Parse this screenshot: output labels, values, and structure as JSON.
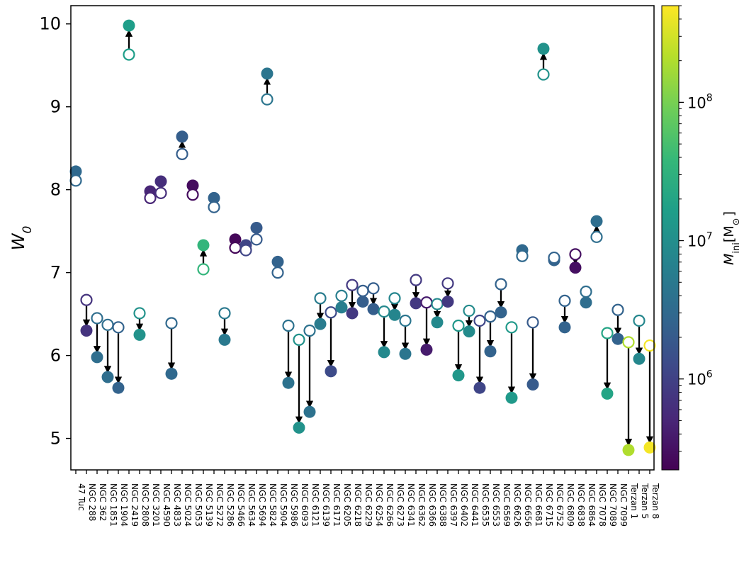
{
  "chart_data": {
    "type": "scatter",
    "ylabel": "W",
    "ylabel_sub": "0",
    "ylim": [
      4.62,
      10.22
    ],
    "yticks": [
      5,
      6,
      7,
      8,
      9,
      10
    ],
    "colorbar": {
      "label_main": "M",
      "label_sub": "ini",
      "label_rest": "[M",
      "label_rest_sub": "⊙",
      "label_close": "]",
      "scale": "log",
      "range": [
        220000,
        500000000
      ],
      "colormap": "viridis",
      "ticks": [
        {
          "base": "10",
          "exp": "6",
          "value": 1000000
        },
        {
          "base": "10",
          "exp": "7",
          "value": 10000000
        },
        {
          "base": "10",
          "exp": "8",
          "value": 100000000
        }
      ]
    },
    "legend_note": "open circle = initial W0, filled circle = final W0; arrows point from initial to final",
    "clusters": [
      {
        "name": "47 Tuc",
        "w0_init": 8.11,
        "w0_final": 8.22,
        "mass": 3000000
      },
      {
        "name": "NGC 288",
        "w0_init": 6.67,
        "w0_final": 6.3,
        "mass": 700000
      },
      {
        "name": "NGC 362",
        "w0_init": 6.45,
        "w0_final": 5.98,
        "mass": 3500000
      },
      {
        "name": "NGC 1851",
        "w0_init": 6.37,
        "w0_final": 5.74,
        "mass": 3500000
      },
      {
        "name": "NGC 1904",
        "w0_init": 6.34,
        "w0_final": 5.61,
        "mass": 2500000
      },
      {
        "name": "NGC 2419",
        "w0_init": 9.63,
        "w0_final": 9.98,
        "mass": 16000000
      },
      {
        "name": "NGC 2808",
        "w0_init": 6.51,
        "w0_final": 6.25,
        "mass": 11000000
      },
      {
        "name": "NGC 3201",
        "w0_init": 7.9,
        "w0_final": 7.98,
        "mass": 500000
      },
      {
        "name": "NGC 4590",
        "w0_init": 7.96,
        "w0_final": 8.1,
        "mass": 600000
      },
      {
        "name": "NGC 4833",
        "w0_init": 6.39,
        "w0_final": 5.78,
        "mass": 3000000
      },
      {
        "name": "NGC 5024",
        "w0_init": 8.43,
        "w0_final": 8.64,
        "mass": 2200000
      },
      {
        "name": "NGC 5053",
        "w0_init": 7.94,
        "w0_final": 8.05,
        "mass": 280000
      },
      {
        "name": "NGC 5139",
        "w0_init": 7.04,
        "w0_final": 7.33,
        "mass": 35000000
      },
      {
        "name": "NGC 5272",
        "w0_init": 7.79,
        "w0_final": 7.9,
        "mass": 2500000
      },
      {
        "name": "NGC 5286",
        "w0_init": 6.51,
        "w0_final": 6.19,
        "mass": 5000000
      },
      {
        "name": "NGC 5466",
        "w0_init": 7.3,
        "w0_final": 7.4,
        "mass": 250000
      },
      {
        "name": "NGC 5634",
        "w0_init": 7.27,
        "w0_final": 7.33,
        "mass": 1100000
      },
      {
        "name": "NGC 5694",
        "w0_init": 7.4,
        "w0_final": 7.54,
        "mass": 2000000
      },
      {
        "name": "NGC 5824",
        "w0_init": 9.09,
        "w0_final": 9.4,
        "mass": 4500000
      },
      {
        "name": "NGC 5904",
        "w0_init": 7.0,
        "w0_final": 7.13,
        "mass": 2500000
      },
      {
        "name": "NGC 5986",
        "w0_init": 6.36,
        "w0_final": 5.67,
        "mass": 4000000
      },
      {
        "name": "NGC 6093",
        "w0_init": 6.19,
        "w0_final": 5.13,
        "mass": 11000000
      },
      {
        "name": "NGC 6121",
        "w0_init": 6.3,
        "w0_final": 5.32,
        "mass": 4000000
      },
      {
        "name": "NGC 6139",
        "w0_init": 6.69,
        "w0_final": 6.38,
        "mass": 5500000
      },
      {
        "name": "NGC 6171",
        "w0_init": 6.52,
        "w0_final": 5.81,
        "mass": 1300000
      },
      {
        "name": "NGC 6205",
        "w0_init": 6.72,
        "w0_final": 6.58,
        "mass": 6000000
      },
      {
        "name": "NGC 6218",
        "w0_init": 6.85,
        "w0_final": 6.51,
        "mass": 800000
      },
      {
        "name": "NGC 6229",
        "w0_init": 6.78,
        "w0_final": 6.65,
        "mass": 2200000
      },
      {
        "name": "NGC 6254",
        "w0_init": 6.81,
        "w0_final": 6.56,
        "mass": 2200000
      },
      {
        "name": "NGC 6266",
        "w0_init": 6.53,
        "w0_final": 6.04,
        "mass": 8500000
      },
      {
        "name": "NGC 6273",
        "w0_init": 6.69,
        "w0_final": 6.49,
        "mass": 7500000
      },
      {
        "name": "NGC 6341",
        "w0_init": 6.42,
        "w0_final": 6.02,
        "mass": 4500000
      },
      {
        "name": "NGC 6362",
        "w0_init": 6.91,
        "w0_final": 6.63,
        "mass": 800000
      },
      {
        "name": "NGC 6366",
        "w0_init": 6.64,
        "w0_final": 6.07,
        "mass": 400000
      },
      {
        "name": "NGC 6388",
        "w0_init": 6.62,
        "w0_final": 6.4,
        "mass": 8500000
      },
      {
        "name": "NGC 6397",
        "w0_init": 6.87,
        "w0_final": 6.65,
        "mass": 800000
      },
      {
        "name": "NGC 6402",
        "w0_init": 6.36,
        "w0_final": 5.76,
        "mass": 13000000
      },
      {
        "name": "NGC 6441",
        "w0_init": 6.54,
        "w0_final": 6.29,
        "mass": 9000000
      },
      {
        "name": "NGC 6535",
        "w0_init": 6.42,
        "w0_final": 5.61,
        "mass": 1100000
      },
      {
        "name": "NGC 6553",
        "w0_init": 6.47,
        "w0_final": 6.05,
        "mass": 2500000
      },
      {
        "name": "NGC 6569",
        "w0_init": 6.86,
        "w0_final": 6.52,
        "mass": 2500000
      },
      {
        "name": "NGC 6626",
        "w0_init": 6.34,
        "w0_final": 5.49,
        "mass": 14000000
      },
      {
        "name": "NGC 6656",
        "w0_init": 7.2,
        "w0_final": 7.27,
        "mass": 3000000
      },
      {
        "name": "NGC 6681",
        "w0_init": 6.4,
        "w0_final": 5.65,
        "mass": 2000000
      },
      {
        "name": "NGC 6715",
        "w0_init": 9.39,
        "w0_final": 9.7,
        "mass": 11000000
      },
      {
        "name": "NGC 6752",
        "w0_init": 7.18,
        "w0_final": 7.15,
        "mass": 2500000
      },
      {
        "name": "NGC 6809",
        "w0_init": 6.66,
        "w0_final": 6.34,
        "mass": 2500000
      },
      {
        "name": "NGC 6838",
        "w0_init": 7.22,
        "w0_final": 7.06,
        "mass": 300000
      },
      {
        "name": "NGC 6864",
        "w0_init": 6.77,
        "w0_final": 6.64,
        "mass": 3500000
      },
      {
        "name": "NGC 7078",
        "w0_init": 7.43,
        "w0_final": 7.62,
        "mass": 3500000
      },
      {
        "name": "NGC 7089",
        "w0_init": 6.27,
        "w0_final": 5.54,
        "mass": 20000000
      },
      {
        "name": "NGC 7099",
        "w0_init": 6.55,
        "w0_final": 6.2,
        "mass": 2500000
      },
      {
        "name": "Terzan 1",
        "w0_init": 6.16,
        "w0_final": 4.86,
        "mass": 200000000
      },
      {
        "name": "Terzan 5",
        "w0_init": 6.42,
        "w0_final": 5.96,
        "mass": 8000000
      },
      {
        "name": "Terzan 8",
        "w0_init": 6.12,
        "w0_final": 4.89,
        "mass": 450000000
      }
    ]
  }
}
